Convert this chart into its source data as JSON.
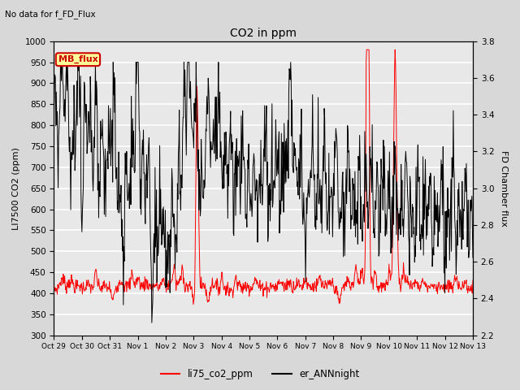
{
  "title": "CO2 in ppm",
  "subtitle": "No data for f_FD_Flux",
  "ylabel_left": "LI7500 CO2 (ppm)",
  "ylabel_right": "FD Chamber flux",
  "ylim_left": [
    300,
    1000
  ],
  "ylim_right": [
    2.2,
    3.8
  ],
  "yticks_left": [
    300,
    350,
    400,
    450,
    500,
    550,
    600,
    650,
    700,
    750,
    800,
    850,
    900,
    950,
    1000
  ],
  "yticks_right": [
    2.2,
    2.4,
    2.6,
    2.8,
    3.0,
    3.2,
    3.4,
    3.6,
    3.8
  ],
  "legend_items": [
    {
      "label": "li75_co2_ppm",
      "color": "red"
    },
    {
      "label": "er_ANNnight",
      "color": "black"
    }
  ],
  "mb_flux_box": {
    "text": "MB_flux",
    "color": "#cc0000",
    "bg": "#ffff99"
  },
  "line_red_color": "red",
  "line_black_color": "black",
  "bg_color": "#d8d8d8",
  "plot_bg_color": "#e8e8e8",
  "grid_color": "white",
  "x_tick_labels": [
    "Oct 29",
    "Oct 30",
    "Oct 31",
    "Nov 1",
    "Nov 2",
    "Nov 3",
    "Nov 4",
    "Nov 5",
    "Nov 6",
    "Nov 7",
    "Nov 8",
    "Nov 9Nov",
    "10Nov",
    "11Nov",
    "12Nov 13"
  ]
}
